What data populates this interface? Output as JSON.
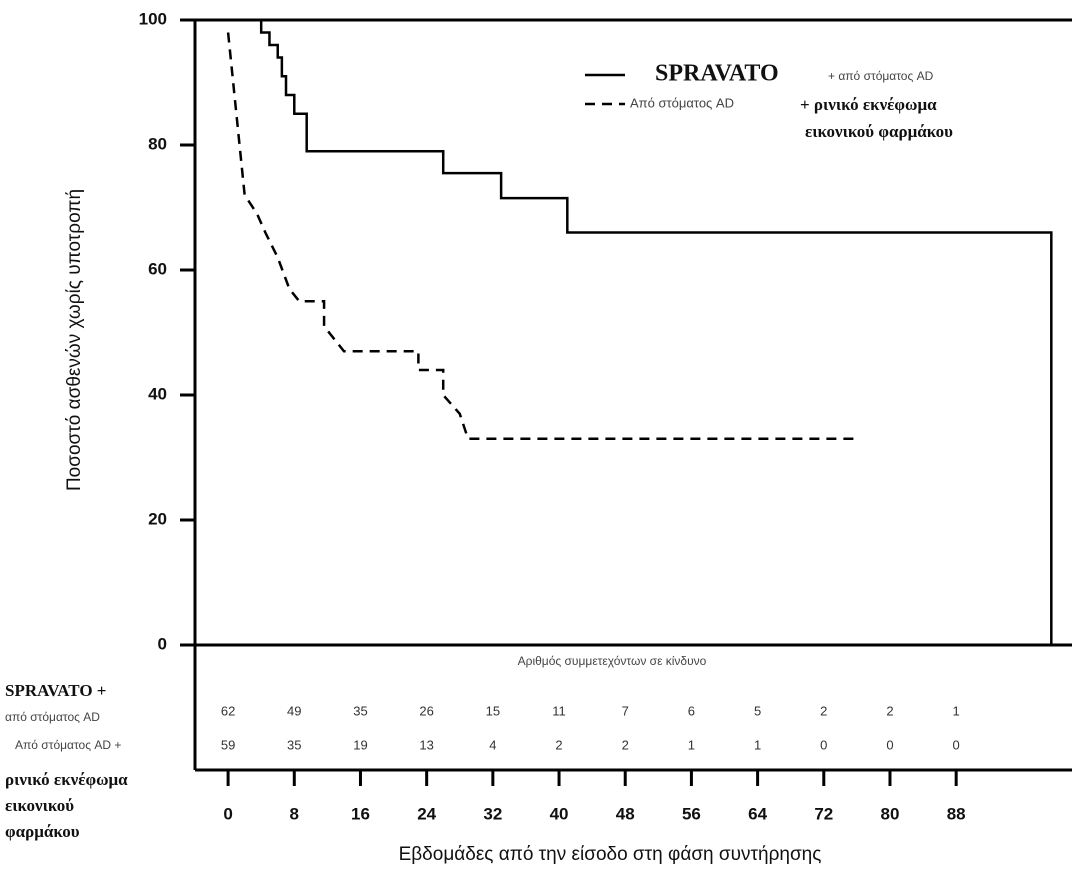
{
  "chart_data": {
    "type": "line",
    "y_label": "Ποσοστό ασθενών χωρίς υποτροπή",
    "x_label": "Εβδομάδες από την είσοδο στη φάση συντήρησης",
    "ylim": [
      0,
      100
    ],
    "yticks": [
      0,
      20,
      40,
      60,
      80,
      100
    ],
    "xlim": [
      -4,
      102
    ],
    "xticks": [
      0,
      8,
      16,
      24,
      32,
      40,
      48,
      56,
      64,
      72,
      80,
      88
    ],
    "series": [
      {
        "name": "SPRAVATO",
        "name_detail": [
          "+ από στόματος AD"
        ],
        "color": "#000000",
        "dashed": false,
        "x": [
          2,
          4,
          4,
          5,
          5,
          6,
          6,
          6.5,
          6.5,
          7,
          7,
          8,
          8,
          9.5,
          9.5,
          26,
          26,
          33,
          33,
          41,
          41,
          99.5,
          99.5
        ],
        "values": [
          100,
          100,
          98,
          98,
          96,
          96,
          94,
          94,
          91,
          91,
          88,
          88,
          85,
          85,
          79,
          79,
          75.5,
          75.5,
          71.5,
          71.5,
          66,
          66,
          0
        ]
      },
      {
        "name": "Από στόματος AD",
        "name_detail": [
          "+ ρινικό εκνέφωμα",
          "εικονικού φαρμάκου"
        ],
        "color": "#000000",
        "dashed": true,
        "x": [
          0,
          1,
          2,
          3.5,
          4.5,
          6,
          7.4,
          8.6,
          11.6,
          11.6,
          14,
          23,
          23,
          26,
          26,
          28,
          29,
          76
        ],
        "values": [
          98,
          85,
          72,
          69,
          66,
          62,
          57,
          55,
          55,
          51,
          47,
          47,
          44,
          44,
          40,
          37,
          33,
          33
        ]
      }
    ],
    "risk_table": {
      "title": "Αριθμός συμμετεχόντων σε κίνδυνο",
      "rows": [
        {
          "label": [
            "SPRAVATO +",
            "από στόματος AD"
          ],
          "values": [
            62,
            49,
            35,
            26,
            15,
            11,
            7,
            6,
            5,
            2,
            2,
            1
          ]
        },
        {
          "label": [
            "Από στόματος AD +",
            "ρινικό εκνέφωμα",
            "εικονικού",
            "φαρμάκου"
          ],
          "values": [
            59,
            35,
            19,
            13,
            4,
            2,
            2,
            1,
            1,
            0,
            0,
            0
          ]
        }
      ]
    }
  }
}
